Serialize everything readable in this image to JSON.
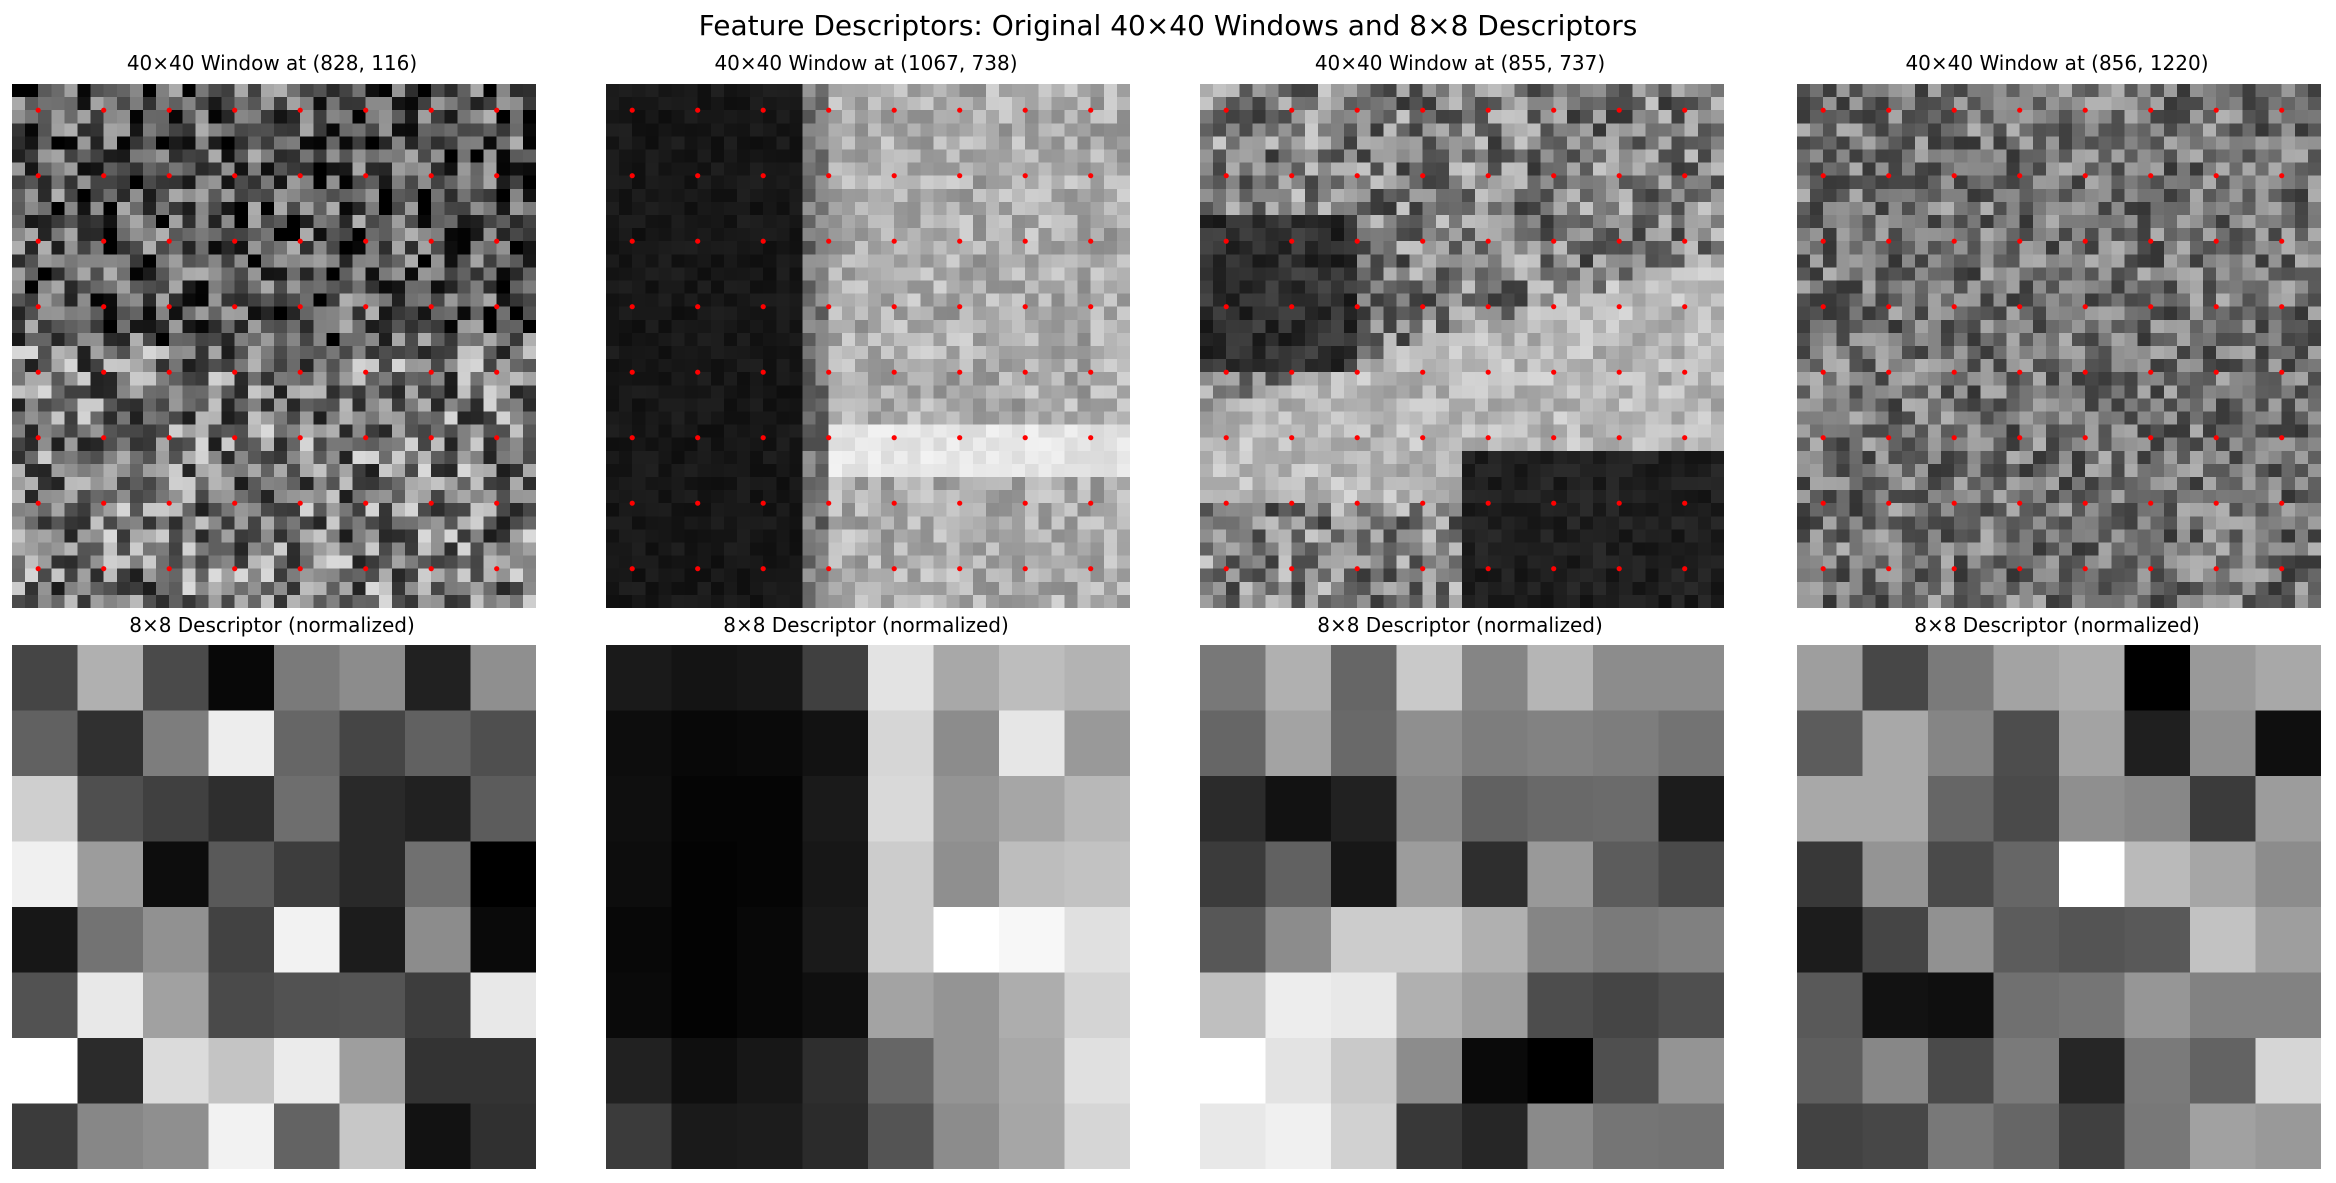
{
  "figure": {
    "title": "Feature Descriptors: Original 40×40 Windows and 8×8 Descriptors"
  },
  "colors": {
    "sample_dot": "#ff0000",
    "colormap": "gray"
  },
  "chart_data": [
    {
      "type": "heatmap",
      "title": "40×40 Window at (828, 116)",
      "rows": 40,
      "cols": 40,
      "grid_size": 8,
      "sample_spacing": 5,
      "texture": "fine high-contrast foliage-like noise, darker upper half, brighter lower half",
      "values": []
    },
    {
      "type": "heatmap",
      "title": "40×40 Window at (1067, 738)",
      "rows": 40,
      "cols": 40,
      "grid_size": 8,
      "sample_spacing": 5,
      "texture": "dark left half, bright textured right half with horizontal band at row ~27",
      "values": []
    },
    {
      "type": "heatmap",
      "title": "40×40 Window at (855, 737)",
      "rows": 40,
      "cols": 40,
      "grid_size": 8,
      "sample_spacing": 5,
      "texture": "textured top, dark blob upper-left, bright diagonal band, dark lower-right region",
      "values": []
    },
    {
      "type": "heatmap",
      "title": "40×40 Window at (856, 1220)",
      "rows": 40,
      "cols": 40,
      "grid_size": 8,
      "sample_spacing": 5,
      "texture": "mid-gray blocky texture with scattered bright and dark spots",
      "values": []
    },
    {
      "type": "heatmap",
      "title": "8×8 Descriptor (normalized)",
      "rows": 8,
      "cols": 8,
      "values": [
        [
          0.27,
          0.69,
          0.29,
          0.03,
          0.48,
          0.55,
          0.13,
          0.56
        ],
        [
          0.38,
          0.19,
          0.49,
          0.93,
          0.4,
          0.27,
          0.38,
          0.31
        ],
        [
          0.81,
          0.31,
          0.25,
          0.18,
          0.43,
          0.16,
          0.13,
          0.36
        ],
        [
          0.94,
          0.61,
          0.05,
          0.35,
          0.24,
          0.16,
          0.44,
          0.0
        ],
        [
          0.09,
          0.45,
          0.57,
          0.26,
          0.95,
          0.11,
          0.55,
          0.04
        ],
        [
          0.32,
          0.91,
          0.63,
          0.29,
          0.32,
          0.33,
          0.24,
          0.91
        ],
        [
          1.0,
          0.17,
          0.86,
          0.77,
          0.92,
          0.62,
          0.2,
          0.2
        ],
        [
          0.23,
          0.53,
          0.56,
          0.95,
          0.39,
          0.78,
          0.07,
          0.19
        ]
      ]
    },
    {
      "type": "heatmap",
      "title": "8×8 Descriptor (normalized)",
      "rows": 8,
      "cols": 8,
      "values": [
        [
          0.1,
          0.08,
          0.09,
          0.25,
          0.89,
          0.66,
          0.74,
          0.7
        ],
        [
          0.05,
          0.03,
          0.04,
          0.07,
          0.84,
          0.55,
          0.9,
          0.6
        ],
        [
          0.06,
          0.02,
          0.02,
          0.1,
          0.85,
          0.58,
          0.65,
          0.72
        ],
        [
          0.05,
          0.01,
          0.02,
          0.09,
          0.8,
          0.56,
          0.74,
          0.76
        ],
        [
          0.03,
          0.01,
          0.03,
          0.1,
          0.8,
          1.0,
          0.97,
          0.88
        ],
        [
          0.04,
          0.01,
          0.03,
          0.06,
          0.64,
          0.58,
          0.68,
          0.83
        ],
        [
          0.13,
          0.06,
          0.09,
          0.18,
          0.4,
          0.58,
          0.66,
          0.88
        ],
        [
          0.23,
          0.1,
          0.11,
          0.17,
          0.33,
          0.55,
          0.65,
          0.84
        ]
      ]
    },
    {
      "type": "heatmap",
      "title": "8×8 Descriptor (normalized)",
      "rows": 8,
      "cols": 8,
      "values": [
        [
          0.47,
          0.69,
          0.4,
          0.79,
          0.52,
          0.71,
          0.55,
          0.55
        ],
        [
          0.4,
          0.64,
          0.41,
          0.56,
          0.49,
          0.51,
          0.49,
          0.45
        ],
        [
          0.17,
          0.07,
          0.13,
          0.53,
          0.38,
          0.41,
          0.42,
          0.11
        ],
        [
          0.23,
          0.38,
          0.09,
          0.61,
          0.18,
          0.6,
          0.36,
          0.29
        ],
        [
          0.34,
          0.55,
          0.8,
          0.8,
          0.69,
          0.52,
          0.48,
          0.5
        ],
        [
          0.75,
          0.93,
          0.91,
          0.69,
          0.62,
          0.3,
          0.27,
          0.31
        ],
        [
          1.0,
          0.89,
          0.79,
          0.55,
          0.04,
          0.0,
          0.31,
          0.58
        ],
        [
          0.91,
          0.94,
          0.82,
          0.22,
          0.15,
          0.54,
          0.46,
          0.45
        ]
      ]
    },
    {
      "type": "heatmap",
      "title": "8×8 Descriptor (normalized)",
      "rows": 8,
      "cols": 8,
      "values": [
        [
          0.62,
          0.28,
          0.48,
          0.64,
          0.68,
          0.0,
          0.6,
          0.66
        ],
        [
          0.36,
          0.66,
          0.52,
          0.3,
          0.64,
          0.12,
          0.56,
          0.06
        ],
        [
          0.66,
          0.66,
          0.4,
          0.29,
          0.56,
          0.53,
          0.23,
          0.61
        ],
        [
          0.22,
          0.58,
          0.29,
          0.4,
          1.0,
          0.73,
          0.65,
          0.55
        ],
        [
          0.11,
          0.27,
          0.57,
          0.36,
          0.33,
          0.35,
          0.76,
          0.62
        ],
        [
          0.35,
          0.07,
          0.06,
          0.44,
          0.46,
          0.59,
          0.51,
          0.51
        ],
        [
          0.37,
          0.53,
          0.29,
          0.48,
          0.15,
          0.48,
          0.39,
          0.84
        ],
        [
          0.26,
          0.28,
          0.47,
          0.4,
          0.25,
          0.47,
          0.63,
          0.6
        ]
      ]
    }
  ]
}
